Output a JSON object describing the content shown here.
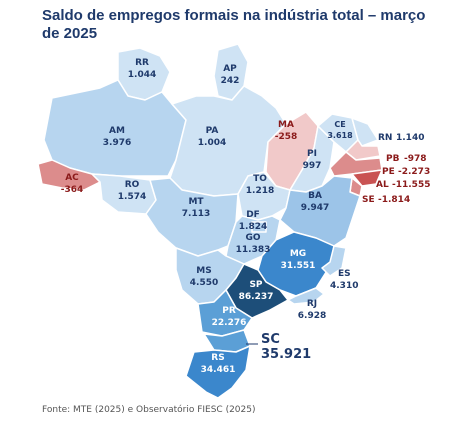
{
  "title": "Saldo de empregos formais na indústria total – março de 2025",
  "source": "Fonte: MTE (2025) e Observatório FIESC (2025)",
  "colors": {
    "very_light": "#cfe3f4",
    "light": "#b7d5ef",
    "mid": "#9cc4e8",
    "mid_strong": "#5b9fd6",
    "strong": "#3b87cc",
    "dark": "#1d4e79",
    "neg_light": "#f1c9c9",
    "neg": "#dc8c8c",
    "neg_strong": "#c95353"
  },
  "states": [
    {
      "uf": "RR",
      "value": "1.044"
    },
    {
      "uf": "AP",
      "value": "242"
    },
    {
      "uf": "AM",
      "value": "3.976"
    },
    {
      "uf": "PA",
      "value": "1.004"
    },
    {
      "uf": "MA",
      "value": "-258"
    },
    {
      "uf": "CE",
      "value": "3.618"
    },
    {
      "uf": "RN",
      "value": "1.140"
    },
    {
      "uf": "PI",
      "value": "997"
    },
    {
      "uf": "PB",
      "value": "-978"
    },
    {
      "uf": "PE",
      "value": "-2.273"
    },
    {
      "uf": "AL",
      "value": "-11.555"
    },
    {
      "uf": "SE",
      "value": "-1.814"
    },
    {
      "uf": "AC",
      "value": "-364"
    },
    {
      "uf": "RO",
      "value": "1.574"
    },
    {
      "uf": "MT",
      "value": "7.113"
    },
    {
      "uf": "TO",
      "value": "1.218"
    },
    {
      "uf": "BA",
      "value": "9.947"
    },
    {
      "uf": "DF",
      "value": "1.824"
    },
    {
      "uf": "GO",
      "value": "11.383"
    },
    {
      "uf": "MG",
      "value": "31.551"
    },
    {
      "uf": "MS",
      "value": "4.550"
    },
    {
      "uf": "ES",
      "value": "4.310"
    },
    {
      "uf": "SP",
      "value": "86.237"
    },
    {
      "uf": "RJ",
      "value": "6.928"
    },
    {
      "uf": "PR",
      "value": "22.276"
    },
    {
      "uf": "SC",
      "value": "35.921"
    },
    {
      "uf": "RS",
      "value": "34.461"
    }
  ]
}
